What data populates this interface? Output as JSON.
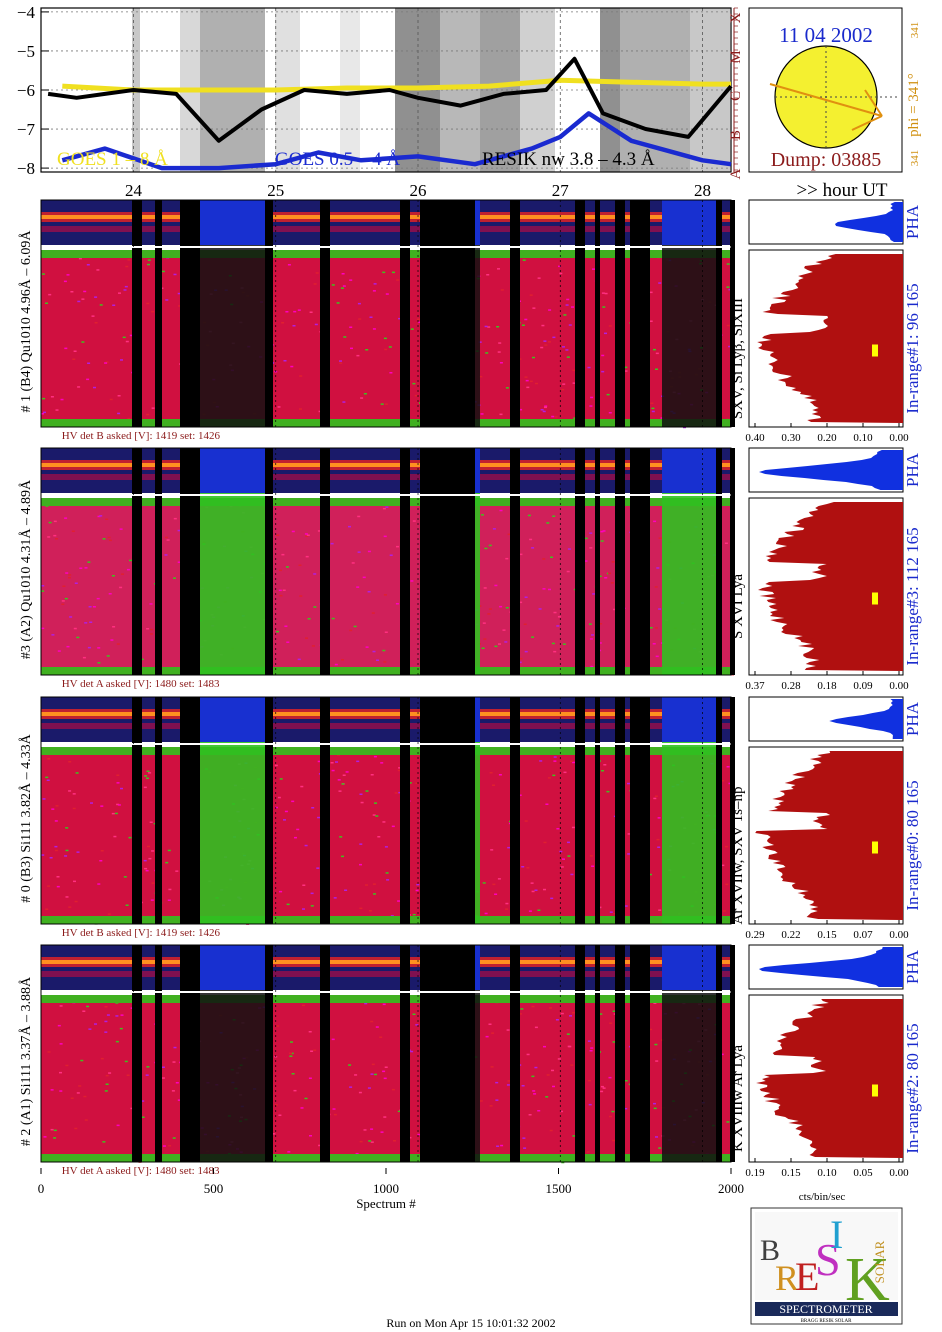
{
  "colors": {
    "goes_long": "#f0e020",
    "goes_short": "#1a2ad0",
    "resik": "#000000",
    "axis_red": "#8b1a1a",
    "panel_label_blue": "#1a2acc",
    "hist_fill": "#b01010",
    "pha_fill": "#1030e0",
    "sun_fill": "#f4f030",
    "sun_arrow": "#e09010",
    "phi_text": "#d09010",
    "hv_text": "#8b1a1a"
  },
  "header": {
    "date": "11 04 2002",
    "dump": "Dump: 03885",
    "phi": "phi = 341°",
    "phi_sub": "341",
    "phi_small": "341",
    "hour_label": ">> hour UT",
    "flare_classes": [
      "A",
      "B",
      "C",
      "M",
      "X"
    ]
  },
  "lightcurve": {
    "y_ticks": [
      "−4",
      "−5",
      "−6",
      "−7",
      "−8"
    ],
    "hour_ticks": [
      "24",
      "25",
      "26",
      "27",
      "28"
    ],
    "legend_goes_long": "GOES 1 – 8 Å",
    "legend_goes_short": "GOES 0.5 – 4 Å",
    "legend_resik": "RESIK nw 3.8 – 4.3 Å"
  },
  "panels": [
    {
      "id": "1",
      "side_label": "# 1 (B4) Qu1010 4.96Å – 6.09Å",
      "lines_label": "SXV, Si Lyβ, SiXIII",
      "inrange": "In-range#1:  96 165",
      "hv": "HV det B asked [V]:  1419 set:  1426",
      "hist_ticks": [
        "0.40",
        "0.30",
        "0.20",
        "0.10",
        "0.00"
      ],
      "pha": "PHA"
    },
    {
      "id": "3",
      "side_label": "#3 (A2) Qu1010  4.31Å – 4.89Å",
      "lines_label": "S XVI Lya",
      "inrange": "In-range#3:  112 165",
      "hv": "HV det A asked [V]:  1480 set:  1483",
      "hist_ticks": [
        "0.37",
        "0.28",
        "0.18",
        "0.09",
        "0.00"
      ],
      "pha": "PHA"
    },
    {
      "id": "0",
      "side_label": "# 0 (B3) Si111  3.82Å – 4.33Å",
      "lines_label": "Ar XVIIw,  SXV 1s–np",
      "inrange": "In-range#0:  80 165",
      "hv": "HV det B asked [V]:  1419 set:  1426",
      "hist_ticks": [
        "0.29",
        "0.22",
        "0.15",
        "0.07",
        "0.00"
      ],
      "pha": "PHA"
    },
    {
      "id": "2",
      "side_label": "# 2 (A1) Si111  3.37Å – 3.88Å",
      "lines_label": "K XVIIIw  Ar Lya",
      "inrange": "In-range#2:  80 165",
      "hv": "HV det A asked [V]:  1480 set:  1483",
      "hist_ticks": [
        "0.19",
        "0.15",
        "0.10",
        "0.05",
        "0.00"
      ],
      "pha": "PHA"
    }
  ],
  "bottom_axis": {
    "ticks": [
      "0",
      "500",
      "1000",
      "1500",
      "2000"
    ],
    "label": "Spectrum #",
    "hist_unit": "cts/bin/sec"
  },
  "logo": {
    "letters": "BRAGG RESIK SOLAR",
    "banner": "SPECTROMETER"
  },
  "footer": "Run on Mon Apr 15 10:01:32 2002",
  "chart_data": {
    "type": "line",
    "x_unit": "hour UT",
    "xlim": [
      23.35,
      28.2
    ],
    "ylim": [
      -8.1,
      -3.9
    ],
    "series": [
      {
        "name": "GOES 1 – 8 Å",
        "x": [
          23.5,
          24.0,
          24.5,
          25.0,
          25.5,
          26.0,
          26.5,
          27.0,
          27.5,
          28.0,
          28.2
        ],
        "y": [
          -5.9,
          -6.0,
          -6.0,
          -6.0,
          -5.95,
          -5.95,
          -5.9,
          -5.75,
          -5.8,
          -5.85,
          -5.85
        ]
      },
      {
        "name": "GOES 0.5 – 4 Å",
        "x": [
          23.5,
          23.8,
          24.2,
          24.6,
          25.0,
          25.3,
          25.6,
          26.0,
          26.4,
          26.8,
          27.0,
          27.2,
          27.5,
          28.0,
          28.2
        ],
        "y": [
          -7.8,
          -7.5,
          -8.0,
          -8.0,
          -7.9,
          -7.6,
          -7.8,
          -7.7,
          -7.9,
          -7.5,
          -7.2,
          -6.6,
          -7.3,
          -7.8,
          -7.9
        ]
      },
      {
        "name": "RESIK nw 3.8 – 4.3 Å",
        "x": [
          23.4,
          23.6,
          23.8,
          24.0,
          24.3,
          24.6,
          24.9,
          25.2,
          25.5,
          25.8,
          26.0,
          26.3,
          26.6,
          26.9,
          27.1,
          27.3,
          27.6,
          27.9,
          28.2
        ],
        "y": [
          -6.1,
          -6.2,
          -6.1,
          -6.0,
          -6.1,
          -7.3,
          -6.5,
          -6.0,
          -6.1,
          -6.0,
          -6.2,
          -6.4,
          -6.1,
          -6.0,
          -5.2,
          -6.6,
          -7.0,
          -7.2,
          -5.9
        ]
      }
    ]
  }
}
